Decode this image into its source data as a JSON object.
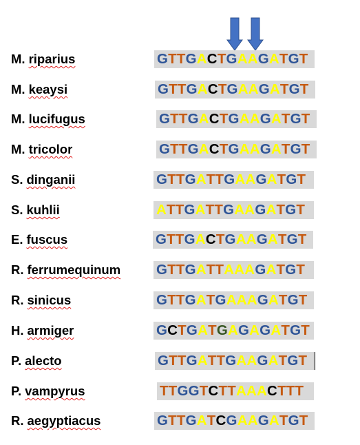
{
  "colors": {
    "G": "#2f5597",
    "T": "#c55a11",
    "A": "#ffff00",
    "C": "#000000",
    "Cdark": "#375623",
    "arrow": "#4472c4",
    "arrow_stroke": "#2f528f",
    "highlight": "#d9d9d9"
  },
  "arrows": [
    {
      "name": "arrow-1"
    },
    {
      "name": "arrow-2"
    }
  ],
  "rows": [
    {
      "genus": "M.",
      "epithet": "riparius",
      "bases": [
        "G",
        "T",
        "T",
        "G",
        "A",
        "C",
        "T",
        "G",
        "A",
        "A",
        "G",
        "A",
        "T",
        "G",
        "T"
      ]
    },
    {
      "genus": "M.",
      "epithet": "keaysi",
      "bases": [
        "G",
        "T",
        "T",
        "G",
        "A",
        "C",
        "T",
        "G",
        "A",
        "A",
        "G",
        "A",
        "T",
        "G",
        "T"
      ]
    },
    {
      "genus": "M.",
      "epithet": "lucifugus",
      "bases": [
        "G",
        "T",
        "T",
        "G",
        "A",
        "C",
        "T",
        "G",
        "A",
        "A",
        "G",
        "A",
        "T",
        "G",
        "T"
      ]
    },
    {
      "genus": "M.",
      "epithet": "tricolor",
      "bases": [
        "G",
        "T",
        "T",
        "G",
        "A",
        "C",
        "T",
        "G",
        "A",
        "A",
        "G",
        "A",
        "T",
        "G",
        "T"
      ]
    },
    {
      "genus": "S.",
      "epithet": "dinganii",
      "bases": [
        "G",
        "T",
        "T",
        "G",
        "A",
        "T",
        "T",
        "G",
        "A",
        "A",
        "G",
        "A",
        "T",
        "G",
        "T"
      ]
    },
    {
      "genus": "S.",
      "epithet": "kuhlii",
      "bases": [
        "A",
        "T",
        "T",
        "G",
        "A",
        "T",
        "T",
        "G",
        "A",
        "A",
        "G",
        "A",
        "T",
        "G",
        "T"
      ]
    },
    {
      "genus": "E.",
      "epithet": "fuscus",
      "bases": [
        "G",
        "T",
        "T",
        "G",
        "A",
        "C",
        "T",
        "G",
        "A",
        "A",
        "G",
        "A",
        "T",
        "G",
        "T"
      ]
    },
    {
      "genus": "R.",
      "epithet": "ferrumequinum",
      "bases": [
        "G",
        "T",
        "T",
        "G",
        "A",
        "T",
        "T",
        "A",
        "A",
        "A",
        "G",
        "A",
        "T",
        "G",
        "T"
      ]
    },
    {
      "genus": "R.",
      "epithet": "sinicus",
      "bases": [
        "G",
        "T",
        "T",
        "G",
        "A",
        "T",
        "G",
        "A",
        "A",
        "A",
        "G",
        "A",
        "T",
        "G",
        "T"
      ]
    },
    {
      "genus": "H.",
      "epithet": "armiger",
      "bases": [
        "G",
        "C",
        "T",
        "G",
        "A",
        "T",
        "G",
        "A",
        "G",
        "A",
        "G",
        "A",
        "T",
        "G",
        "T"
      ]
    },
    {
      "genus": "P.",
      "epithet": "alecto",
      "bases": [
        "G",
        "T",
        "T",
        "G",
        "A",
        "T",
        "T",
        "G",
        "A",
        "A",
        "G",
        "A",
        "T",
        "G",
        "T"
      ]
    },
    {
      "genus": "P.",
      "epithet": "vampyrus",
      "bases": [
        "T",
        "T",
        "G",
        "G",
        "T",
        "C",
        "T",
        "T",
        "A",
        "A",
        "A",
        "C",
        "T",
        "T",
        "T"
      ]
    },
    {
      "genus": "R.",
      "epithet": "aegyptiacus",
      "bases": [
        "G",
        "T",
        "T",
        "G",
        "A",
        "T",
        "C",
        "G",
        "A",
        "A",
        "G",
        "A",
        "T",
        "G",
        "T"
      ]
    }
  ]
}
